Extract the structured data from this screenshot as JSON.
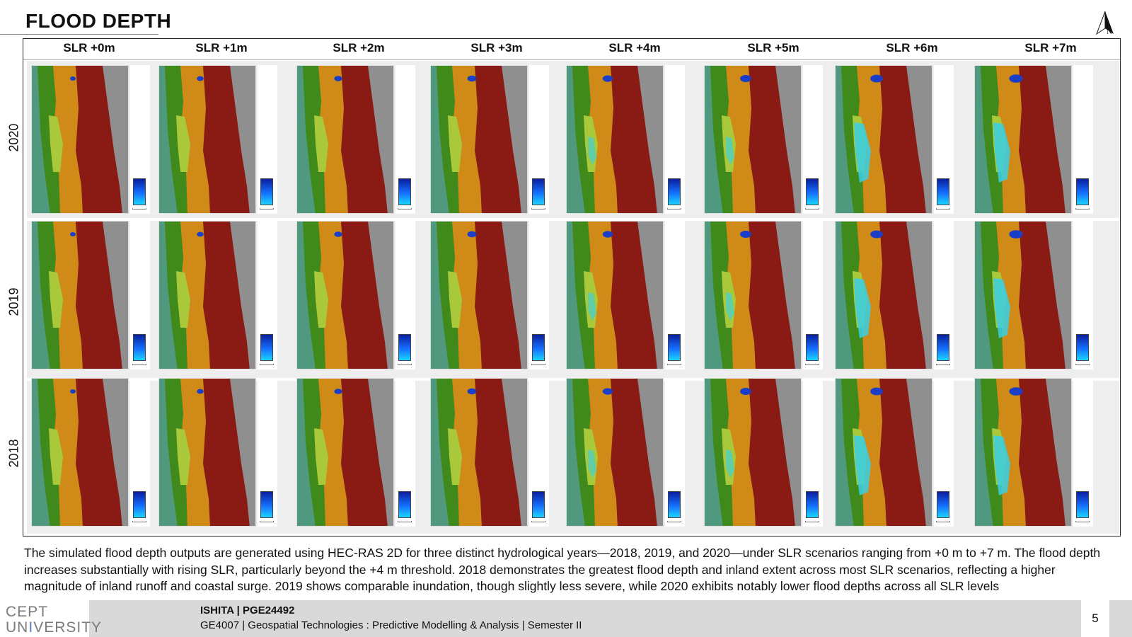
{
  "slide": {
    "title": "FLOOD DEPTH",
    "north_letter": "N"
  },
  "grid": {
    "columns": [
      "SLR +0m",
      "SLR +1m",
      "SLR +2m",
      "SLR +3m",
      "SLR +4m",
      "SLR +5m",
      "SLR +6m",
      "SLR +7m"
    ],
    "rows": [
      "2020",
      "2019",
      "2018"
    ]
  },
  "caption": "The simulated flood depth outputs are generated using HEC-RAS 2D for three distinct hydrological years—2018, 2019, and 2020—under SLR scenarios ranging from +0 m to +7 m. The flood depth increases substantially with rising SLR, particularly beyond the +4 m threshold. 2018 demonstrates the greatest flood depth and inland extent across most SLR scenarios, reflecting a higher magnitude of inland runoff and coastal surge. 2019 shows comparable inundation, though slightly less severe, while 2020 exhibits notably lower flood depths across all SLR levels",
  "footer": {
    "logo_top": "CEPT",
    "logo_bottom_1": "UN",
    "logo_bottom_accent": "I",
    "logo_bottom_2": "VERSITY",
    "author": "ISHITA | PGE24492",
    "course": "GE4007 | Geospatial Technologies : Predictive Modelling & Analysis | Semester II",
    "page_number": "5"
  },
  "colors": {
    "sea": "#4f9a7f",
    "lowland": "#a9c93a",
    "vegetation": "#3f8a1a",
    "midland": "#d08a18",
    "upland": "#8a1a14",
    "terrain": "#8f8f8f",
    "flood_light": "#37d0e8",
    "flood_deep": "#1a3ec8"
  }
}
